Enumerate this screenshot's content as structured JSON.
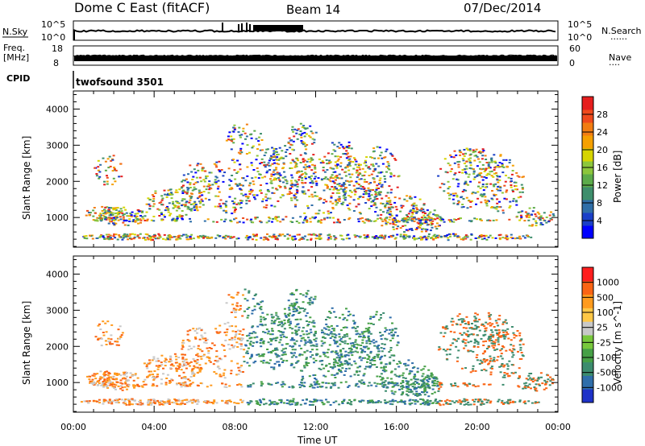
{
  "header": {
    "station": "Dome C East (fitACF)",
    "beam": "Beam 14",
    "date": "07/Dec/2014"
  },
  "strip_labels": {
    "nsky": "N.Sky",
    "nsearch": "N.Search",
    "nsearch_dots": "......",
    "freq": "Freq.",
    "freq_unit": "[MHz]",
    "nave": "Nave",
    "nave_dots": "....",
    "cpid": "CPID",
    "cpid_value": "twofsound 3501",
    "noise_ticks_left": [
      "10^5",
      "10^0"
    ],
    "noise_ticks_right": [
      "10^5",
      "10^0"
    ],
    "freq_ticks": [
      "18",
      "8"
    ],
    "nave_ticks": [
      "60",
      "0"
    ]
  },
  "chart_data": [
    {
      "type": "heatmap",
      "title": "",
      "xlabel": "",
      "ylabel": "Slant Range [km]",
      "xlim": [
        0,
        24
      ],
      "ylim": [
        180,
        4500
      ],
      "x_ticks": [],
      "y_ticks": [
        {
          "value": 1000,
          "label": "1000"
        },
        {
          "value": 2000,
          "label": "2000"
        },
        {
          "value": 3000,
          "label": "3000"
        },
        {
          "value": 4000,
          "label": "4000"
        }
      ],
      "colorbar": {
        "label": "Power [dB]",
        "ticks": [
          "4",
          "8",
          "12",
          "16",
          "20",
          "24",
          "28"
        ],
        "colors": [
          "#0000ff",
          "#1a3fc8",
          "#2f6ea8",
          "#3e8e6c",
          "#5cab4a",
          "#8cc63c",
          "#d6d400",
          "#f5a000",
          "#f27d12",
          "#ef4a1c",
          "#e61e1e"
        ]
      }
    },
    {
      "type": "heatmap",
      "title": "",
      "xlabel": "Time UT",
      "ylabel": "Slant Range [km]",
      "xlim": [
        0,
        24
      ],
      "ylim": [
        180,
        4500
      ],
      "x_ticks": [
        {
          "value": 0,
          "label": "00:00"
        },
        {
          "value": 4,
          "label": "04:00"
        },
        {
          "value": 8,
          "label": "08:00"
        },
        {
          "value": 12,
          "label": "12:00"
        },
        {
          "value": 16,
          "label": "16:00"
        },
        {
          "value": 20,
          "label": "20:00"
        },
        {
          "value": 24,
          "label": "00:00"
        }
      ],
      "y_ticks": [
        {
          "value": 1000,
          "label": "1000"
        },
        {
          "value": 2000,
          "label": "2000"
        },
        {
          "value": 3000,
          "label": "3000"
        },
        {
          "value": 4000,
          "label": "4000"
        }
      ],
      "colorbar": {
        "label": "Velocity [m s^-1]",
        "ticks": [
          "1000",
          "500",
          "100",
          "25",
          "-25",
          "-100",
          "-500",
          "-1000"
        ],
        "colors": [
          "#1e32c8",
          "#2f6eaa",
          "#3c8c6e",
          "#46a046",
          "#78c83c",
          "#c8c8c8",
          "#ffc846",
          "#ff9b1e",
          "#fa6414",
          "#ff1e1e"
        ]
      }
    }
  ]
}
